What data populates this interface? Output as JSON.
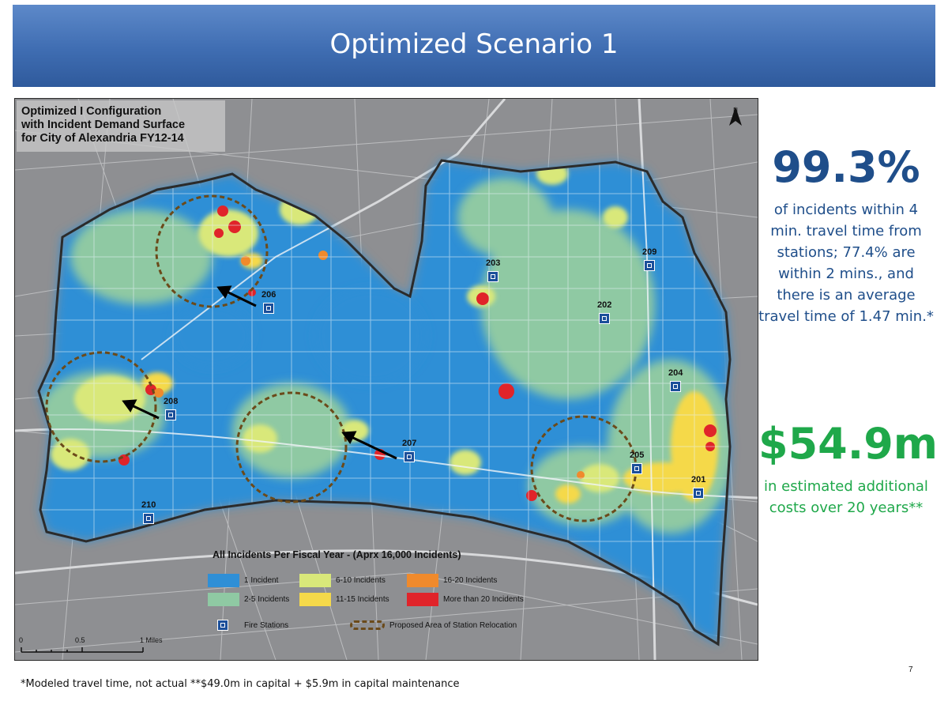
{
  "slide": {
    "title": "Optimized Scenario 1",
    "page_number": "7",
    "footnote": "*Modeled travel time, not actual **$49.0m in capital + $5.9m in capital maintenance"
  },
  "map": {
    "title": "Optimized I Configuration\nwith Incident Demand Surface\nfor City of Alexandria FY12-14",
    "north_label": "N",
    "stations": [
      {
        "id": "206"
      },
      {
        "id": "208"
      },
      {
        "id": "207"
      },
      {
        "id": "210"
      },
      {
        "id": "203"
      },
      {
        "id": "202"
      },
      {
        "id": "209"
      },
      {
        "id": "204"
      },
      {
        "id": "205"
      },
      {
        "id": "201"
      }
    ],
    "legend": {
      "title": "All Incidents Per Fiscal Year - (Aprx 16,000 Incidents)",
      "items": [
        {
          "label": "1 Incident",
          "color": "#2f8fd6"
        },
        {
          "label": "2-5 Incidents",
          "color": "#8fc9a3"
        },
        {
          "label": "6-10 Incidents",
          "color": "#d9e87a"
        },
        {
          "label": "11-15 Incidents",
          "color": "#f5d94a"
        },
        {
          "label": "16-20 Incidents",
          "color": "#f08a2c"
        },
        {
          "label": "More than 20 Incidents",
          "color": "#e0242a"
        }
      ],
      "fire_stations_label": "Fire Stations",
      "relocation_label": "Proposed Area of Station Relocation"
    },
    "scale": {
      "labels": [
        "0",
        "0.5",
        "1 Miles"
      ]
    }
  },
  "stats": {
    "coverage_value": "99.3%",
    "coverage_desc": "of incidents within 4 min. travel time from stations; 77.4% are within 2 mins., and there is an average travel time of 1.47 min.*",
    "cost_value": "$54.9m",
    "cost_desc": "in estimated additional costs over 20 years**"
  },
  "colors": {
    "banner": "#3f6db2",
    "coverage_text": "#1f4e8a",
    "cost_text": "#1fa84a",
    "city_boundary": "#2b2b2b",
    "relocation_circle": "#6b4a1a"
  }
}
